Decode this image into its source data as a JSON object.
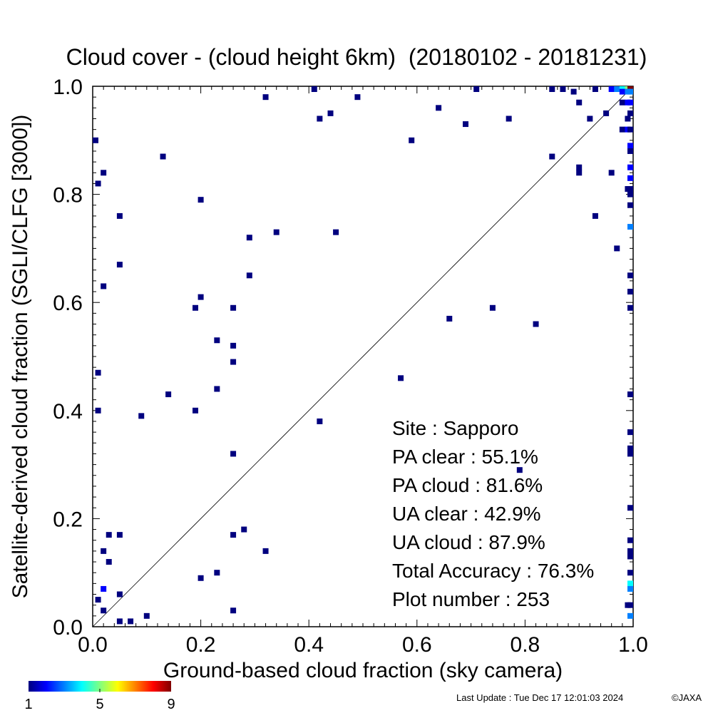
{
  "chart_data": {
    "type": "heatmap",
    "title": "Cloud cover - (cloud height 6km)  (20180102 - 20181231)",
    "xlabel": "Ground-based cloud fraction (sky camera)",
    "ylabel": "Satellite-derived cloud fraction (SGLI/CLFG [3000])",
    "xlim": [
      0.0,
      1.0
    ],
    "ylim": [
      0.0,
      1.0
    ],
    "xticks": [
      "0.0",
      "0.2",
      "0.4",
      "0.6",
      "0.8",
      "1.0"
    ],
    "yticks": [
      "0.0",
      "0.2",
      "0.4",
      "0.6",
      "0.8",
      "1.0"
    ],
    "grid": false,
    "reference_line": "1:1 diagonal",
    "colorbar": {
      "min": 1,
      "max": 9,
      "labels": [
        "1",
        "5",
        "9"
      ],
      "placement": "bottom-left",
      "colormap": "rainbow"
    },
    "stats": [
      {
        "label": "Site : Sapporo",
        "value": ""
      },
      {
        "label": "PA clear :",
        "value": "55.1%"
      },
      {
        "label": "PA cloud :",
        "value": "81.6%"
      },
      {
        "label": "UA clear :",
        "value": "42.9%"
      },
      {
        "label": "UA cloud :",
        "value": "87.9%"
      },
      {
        "label": "Total Accuracy :",
        "value": "76.3%"
      },
      {
        "label": "Plot number :",
        "value": "253"
      }
    ],
    "points": [
      {
        "x": 0.0,
        "y": 0.9,
        "n": 1
      },
      {
        "x": 0.01,
        "y": 0.82,
        "n": 1
      },
      {
        "x": 0.02,
        "y": 0.84,
        "n": 1
      },
      {
        "x": 0.05,
        "y": 0.76,
        "n": 1
      },
      {
        "x": 0.05,
        "y": 0.67,
        "n": 1
      },
      {
        "x": 0.02,
        "y": 0.63,
        "n": 1
      },
      {
        "x": 0.13,
        "y": 0.87,
        "n": 1
      },
      {
        "x": 0.2,
        "y": 0.79,
        "n": 1
      },
      {
        "x": 0.32,
        "y": 0.98,
        "n": 1
      },
      {
        "x": 0.41,
        "y": 1.0,
        "n": 1
      },
      {
        "x": 0.42,
        "y": 0.94,
        "n": 1
      },
      {
        "x": 0.44,
        "y": 0.95,
        "n": 1
      },
      {
        "x": 0.49,
        "y": 0.98,
        "n": 1
      },
      {
        "x": 0.29,
        "y": 0.72,
        "n": 1
      },
      {
        "x": 0.34,
        "y": 0.73,
        "n": 1
      },
      {
        "x": 0.45,
        "y": 0.73,
        "n": 1
      },
      {
        "x": 0.29,
        "y": 0.65,
        "n": 1
      },
      {
        "x": 0.19,
        "y": 0.59,
        "n": 1
      },
      {
        "x": 0.2,
        "y": 0.61,
        "n": 1
      },
      {
        "x": 0.26,
        "y": 0.59,
        "n": 1
      },
      {
        "x": 0.23,
        "y": 0.53,
        "n": 1
      },
      {
        "x": 0.26,
        "y": 0.52,
        "n": 1
      },
      {
        "x": 0.26,
        "y": 0.49,
        "n": 1
      },
      {
        "x": 0.01,
        "y": 0.47,
        "n": 1
      },
      {
        "x": 0.23,
        "y": 0.44,
        "n": 1
      },
      {
        "x": 0.14,
        "y": 0.43,
        "n": 1
      },
      {
        "x": 0.01,
        "y": 0.4,
        "n": 1
      },
      {
        "x": 0.09,
        "y": 0.39,
        "n": 1
      },
      {
        "x": 0.19,
        "y": 0.4,
        "n": 1
      },
      {
        "x": 0.42,
        "y": 0.38,
        "n": 1
      },
      {
        "x": 0.26,
        "y": 0.32,
        "n": 1
      },
      {
        "x": 0.57,
        "y": 0.46,
        "n": 1
      },
      {
        "x": 0.59,
        "y": 0.9,
        "n": 1
      },
      {
        "x": 0.64,
        "y": 0.96,
        "n": 1
      },
      {
        "x": 0.69,
        "y": 0.93,
        "n": 1
      },
      {
        "x": 0.71,
        "y": 1.0,
        "n": 1
      },
      {
        "x": 0.77,
        "y": 0.94,
        "n": 1
      },
      {
        "x": 0.66,
        "y": 0.57,
        "n": 1
      },
      {
        "x": 0.74,
        "y": 0.59,
        "n": 1
      },
      {
        "x": 0.82,
        "y": 0.56,
        "n": 1
      },
      {
        "x": 0.79,
        "y": 0.29,
        "n": 1
      },
      {
        "x": 0.85,
        "y": 0.87,
        "n": 1
      },
      {
        "x": 0.9,
        "y": 0.85,
        "n": 1
      },
      {
        "x": 0.9,
        "y": 0.84,
        "n": 1
      },
      {
        "x": 0.93,
        "y": 0.76,
        "n": 1
      },
      {
        "x": 0.96,
        "y": 0.84,
        "n": 1
      },
      {
        "x": 0.97,
        "y": 0.7,
        "n": 1
      },
      {
        "x": 0.85,
        "y": 1.0,
        "n": 1
      },
      {
        "x": 0.87,
        "y": 1.0,
        "n": 1
      },
      {
        "x": 0.89,
        "y": 0.99,
        "n": 1
      },
      {
        "x": 0.9,
        "y": 0.97,
        "n": 1
      },
      {
        "x": 0.92,
        "y": 0.94,
        "n": 1
      },
      {
        "x": 0.93,
        "y": 1.0,
        "n": 1
      },
      {
        "x": 0.95,
        "y": 0.95,
        "n": 1
      },
      {
        "x": 0.96,
        "y": 1.0,
        "n": 2
      },
      {
        "x": 0.97,
        "y": 1.0,
        "n": 3
      },
      {
        "x": 0.98,
        "y": 1.0,
        "n": 4
      },
      {
        "x": 0.99,
        "y": 1.0,
        "n": 5
      },
      {
        "x": 1.0,
        "y": 1.0,
        "n": 9
      },
      {
        "x": 0.98,
        "y": 0.99,
        "n": 2
      },
      {
        "x": 0.99,
        "y": 0.99,
        "n": 3
      },
      {
        "x": 1.0,
        "y": 0.99,
        "n": 3
      },
      {
        "x": 0.98,
        "y": 0.97,
        "n": 1
      },
      {
        "x": 0.99,
        "y": 0.97,
        "n": 2
      },
      {
        "x": 1.0,
        "y": 0.97,
        "n": 2
      },
      {
        "x": 0.98,
        "y": 0.92,
        "n": 1
      },
      {
        "x": 0.99,
        "y": 0.92,
        "n": 2
      },
      {
        "x": 1.0,
        "y": 0.92,
        "n": 1
      },
      {
        "x": 0.99,
        "y": 0.94,
        "n": 1
      },
      {
        "x": 1.0,
        "y": 0.95,
        "n": 1
      },
      {
        "x": 0.99,
        "y": 0.81,
        "n": 1
      },
      {
        "x": 1.0,
        "y": 0.81,
        "n": 1
      },
      {
        "x": 1.0,
        "y": 0.89,
        "n": 2
      },
      {
        "x": 1.0,
        "y": 0.88,
        "n": 1
      },
      {
        "x": 1.0,
        "y": 0.85,
        "n": 2
      },
      {
        "x": 1.0,
        "y": 0.83,
        "n": 2
      },
      {
        "x": 1.0,
        "y": 0.8,
        "n": 1
      },
      {
        "x": 1.0,
        "y": 0.78,
        "n": 1
      },
      {
        "x": 1.0,
        "y": 0.74,
        "n": 3
      },
      {
        "x": 1.0,
        "y": 0.65,
        "n": 1
      },
      {
        "x": 1.0,
        "y": 0.62,
        "n": 1
      },
      {
        "x": 1.0,
        "y": 0.59,
        "n": 1
      },
      {
        "x": 1.0,
        "y": 0.43,
        "n": 1
      },
      {
        "x": 1.0,
        "y": 0.36,
        "n": 1
      },
      {
        "x": 1.0,
        "y": 0.33,
        "n": 1
      },
      {
        "x": 1.0,
        "y": 0.32,
        "n": 1
      },
      {
        "x": 1.0,
        "y": 0.22,
        "n": 1
      },
      {
        "x": 1.0,
        "y": 0.16,
        "n": 1
      },
      {
        "x": 1.0,
        "y": 0.14,
        "n": 1
      },
      {
        "x": 1.0,
        "y": 0.13,
        "n": 1
      },
      {
        "x": 1.0,
        "y": 0.1,
        "n": 1
      },
      {
        "x": 1.0,
        "y": 0.08,
        "n": 4
      },
      {
        "x": 1.0,
        "y": 0.07,
        "n": 3
      },
      {
        "x": 1.0,
        "y": 0.04,
        "n": 1
      },
      {
        "x": 0.99,
        "y": 0.04,
        "n": 1
      },
      {
        "x": 1.0,
        "y": 0.02,
        "n": 3
      },
      {
        "x": 0.03,
        "y": 0.17,
        "n": 1
      },
      {
        "x": 0.05,
        "y": 0.17,
        "n": 1
      },
      {
        "x": 0.02,
        "y": 0.14,
        "n": 1
      },
      {
        "x": 0.03,
        "y": 0.12,
        "n": 1
      },
      {
        "x": 0.02,
        "y": 0.07,
        "n": 2
      },
      {
        "x": 0.01,
        "y": 0.05,
        "n": 1
      },
      {
        "x": 0.05,
        "y": 0.06,
        "n": 1
      },
      {
        "x": 0.02,
        "y": 0.03,
        "n": 1
      },
      {
        "x": 0.05,
        "y": 0.01,
        "n": 1
      },
      {
        "x": 0.07,
        "y": 0.01,
        "n": 1
      },
      {
        "x": 0.1,
        "y": 0.02,
        "n": 1
      },
      {
        "x": 0.2,
        "y": 0.09,
        "n": 1
      },
      {
        "x": 0.23,
        "y": 0.1,
        "n": 1
      },
      {
        "x": 0.26,
        "y": 0.17,
        "n": 1
      },
      {
        "x": 0.28,
        "y": 0.18,
        "n": 1
      },
      {
        "x": 0.32,
        "y": 0.14,
        "n": 1
      },
      {
        "x": 0.26,
        "y": 0.03,
        "n": 1
      }
    ]
  },
  "footer": {
    "last_update": "Last Update : Tue Dec 17 12:01:03 2024",
    "copyright": "©JAXA"
  }
}
